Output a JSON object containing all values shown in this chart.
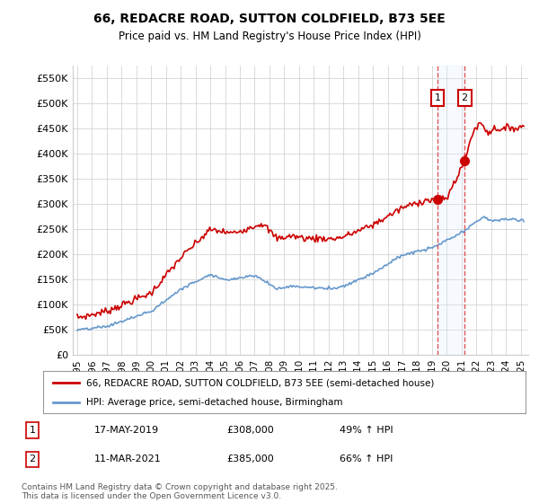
{
  "title_line1": "66, REDACRE ROAD, SUTTON COLDFIELD, B73 5EE",
  "title_line2": "Price paid vs. HM Land Registry's House Price Index (HPI)",
  "ylabel_ticks": [
    "£0",
    "£50K",
    "£100K",
    "£150K",
    "£200K",
    "£250K",
    "£300K",
    "£350K",
    "£400K",
    "£450K",
    "£500K",
    "£550K"
  ],
  "ytick_values": [
    0,
    50000,
    100000,
    150000,
    200000,
    250000,
    300000,
    350000,
    400000,
    450000,
    500000,
    550000
  ],
  "ylim": [
    0,
    575000
  ],
  "xlim_start": 1994.7,
  "xlim_end": 2025.5,
  "house_color": "#cc0000",
  "hpi_color": "#6699cc",
  "vline_color": "#dd4444",
  "shade_color": "#ddeeff",
  "vline1_x": 2019.37,
  "vline2_x": 2021.19,
  "sale1_price": 308000,
  "sale1_date": "17-MAY-2019",
  "sale1_label": "49% ↑ HPI",
  "sale2_price": 385000,
  "sale2_date": "11-MAR-2021",
  "sale2_label": "66% ↑ HPI",
  "legend_house": "66, REDACRE ROAD, SUTTON COLDFIELD, B73 5EE (semi-detached house)",
  "legend_hpi": "HPI: Average price, semi-detached house, Birmingham",
  "footnote": "Contains HM Land Registry data © Crown copyright and database right 2025.\nThis data is licensed under the Open Government Licence v3.0.",
  "background_color": "#ffffff",
  "plot_bg_color": "#ffffff",
  "grid_color": "#cccccc",
  "xtick_years": [
    1995,
    1996,
    1997,
    1998,
    1999,
    2000,
    2001,
    2002,
    2003,
    2004,
    2005,
    2006,
    2007,
    2008,
    2009,
    2010,
    2011,
    2012,
    2013,
    2014,
    2015,
    2016,
    2017,
    2018,
    2019,
    2020,
    2021,
    2022,
    2023,
    2024,
    2025
  ]
}
